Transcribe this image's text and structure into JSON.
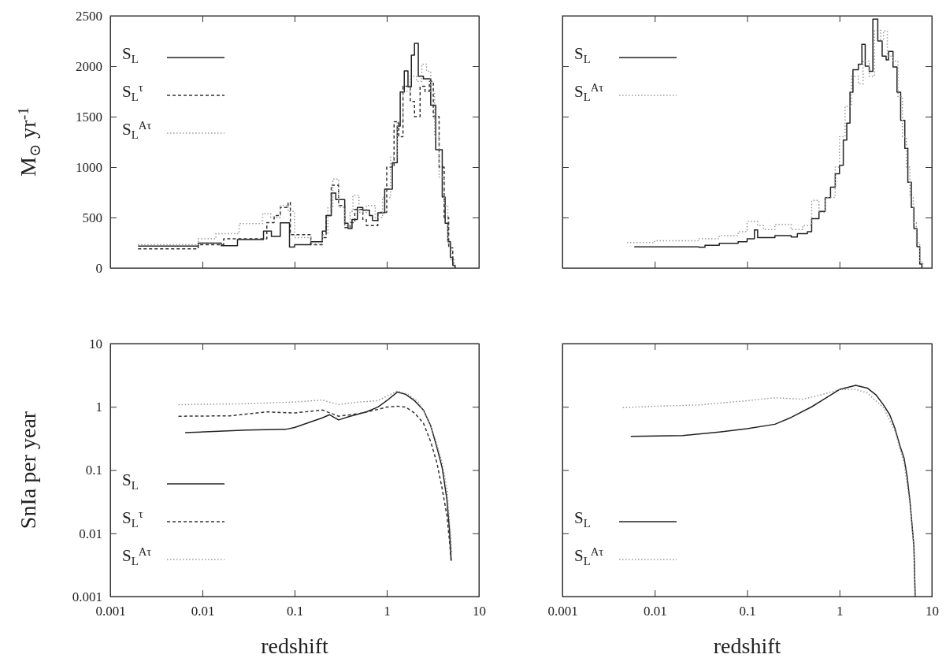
{
  "chart_data": [
    {
      "type": "step",
      "log": "x",
      "xlim": [
        0.001,
        10
      ],
      "xticks": [
        0.001,
        0.01,
        0.1,
        1,
        10
      ],
      "ylim": [
        0,
        2500
      ],
      "yticks": [
        0,
        500,
        1000,
        1500,
        2000,
        2500
      ],
      "tick_labels": "y",
      "ylabel": "M$_{⊙}$ yr$^{-1}$",
      "legend": "top left",
      "series": [
        {
          "name": "S$_{L}$",
          "color": "#222222",
          "line_style": "solid",
          "x": [
            0.002,
            0.009,
            0.016,
            0.024,
            0.046,
            0.056,
            0.07,
            0.088,
            0.1,
            0.15,
            0.2,
            0.22,
            0.25,
            0.28,
            0.35,
            0.38,
            0.42,
            0.48,
            0.55,
            0.65,
            0.7,
            0.8,
            0.95,
            1.15,
            1.3,
            1.4,
            1.55,
            1.7,
            1.85,
            2.0,
            2.2,
            2.5,
            2.8,
            3.0,
            3.4,
            4.0,
            4.3,
            4.6,
            4.9,
            5.2,
            5.5
          ],
          "values": [
            216,
            247,
            221,
            281,
            365,
            312,
            448,
            208,
            230,
            260,
            365,
            520,
            742,
            677,
            443,
            390,
            480,
            600,
            573,
            520,
            470,
            547,
            781,
            1042,
            1406,
            1745,
            1953,
            1797,
            2109,
            2226,
            1901,
            1875,
            1875,
            1614,
            1172,
            703,
            443,
            260,
            104,
            26,
            0
          ]
        },
        {
          "name": "S$_{L}$$^{τ}$",
          "color": "#333333",
          "line_style": "dashed",
          "x": [
            0.002,
            0.009,
            0.017,
            0.05,
            0.06,
            0.07,
            0.085,
            0.09,
            0.15,
            0.2,
            0.22,
            0.25,
            0.3,
            0.35,
            0.4,
            0.45,
            0.55,
            0.6,
            0.8,
            1.0,
            1.2,
            1.35,
            1.5,
            1.8,
            2.0,
            2.3,
            2.6,
            2.9,
            3.2,
            3.7,
            4.2,
            4.7,
            5.2,
            5.5
          ],
          "values": [
            190,
            230,
            290,
            450,
            520,
            600,
            650,
            330,
            230,
            300,
            520,
            820,
            620,
            400,
            450,
            580,
            480,
            420,
            550,
            1000,
            1450,
            1300,
            1800,
            1650,
            1500,
            1800,
            1750,
            1850,
            1500,
            1000,
            500,
            200,
            30,
            0
          ]
        },
        {
          "name": "S$_{L}$$^{Aτ}$",
          "color": "#999999",
          "line_style": "dotted",
          "x": [
            0.002,
            0.009,
            0.014,
            0.025,
            0.045,
            0.055,
            0.07,
            0.085,
            0.1,
            0.15,
            0.2,
            0.23,
            0.26,
            0.3,
            0.35,
            0.4,
            0.43,
            0.5,
            0.6,
            0.75,
            0.9,
            1.1,
            1.3,
            1.5,
            1.8,
            2.1,
            2.4,
            2.7,
            3.0,
            3.3,
            3.7,
            4.2,
            4.6,
            5.0,
            5.4
          ],
          "values": [
            230,
            290,
            340,
            440,
            540,
            500,
            620,
            560,
            300,
            250,
            330,
            600,
            880,
            600,
            420,
            560,
            720,
            550,
            620,
            500,
            700,
            1100,
            1450,
            1750,
            1900,
            1850,
            2020,
            1950,
            1750,
            1300,
            900,
            620,
            250,
            80,
            0
          ]
        }
      ]
    },
    {
      "type": "step",
      "log": "x",
      "xlim": [
        0.001,
        10
      ],
      "xticks": [
        0.001,
        0.01,
        0.1,
        1,
        10
      ],
      "ylim": [
        0,
        2500
      ],
      "yticks": [
        0,
        500,
        1000,
        1500,
        2000,
        2500
      ],
      "tick_labels": false,
      "legend": "top left",
      "series": [
        {
          "name": "S$_{L}$",
          "color": "#222222",
          "line_style": "solid",
          "x": [
            0.006,
            0.03,
            0.035,
            0.05,
            0.08,
            0.1,
            0.12,
            0.13,
            0.2,
            0.3,
            0.35,
            0.45,
            0.5,
            0.6,
            0.7,
            0.8,
            0.9,
            1.0,
            1.1,
            1.2,
            1.3,
            1.4,
            1.6,
            1.75,
            1.9,
            2.1,
            2.3,
            2.6,
            2.9,
            3.2,
            3.4,
            3.8,
            4.2,
            4.6,
            5.1,
            5.5,
            6.0,
            6.4,
            6.9,
            7.4,
            7.8
          ],
          "values": [
            209,
            205,
            225,
            245,
            260,
            290,
            376,
            300,
            320,
            306,
            340,
            360,
            488,
            560,
            697,
            800,
            934,
            1017,
            1268,
            1435,
            1742,
            1965,
            2020,
            2216,
            2000,
            1950,
            2466,
            2250,
            2100,
            2062,
            2146,
            1993,
            1742,
            1463,
            1185,
            850,
            599,
            390,
            210,
            40,
            0
          ]
        },
        {
          "name": "S$_{L}$$^{Aτ}$",
          "color": "#999999",
          "line_style": "dotted",
          "x": [
            0.005,
            0.01,
            0.02,
            0.03,
            0.05,
            0.08,
            0.1,
            0.13,
            0.15,
            0.2,
            0.3,
            0.4,
            0.5,
            0.6,
            0.7,
            0.9,
            1.0,
            1.15,
            1.35,
            1.6,
            1.8,
            2.1,
            2.4,
            2.8,
            3.0,
            3.3,
            3.8,
            4.3,
            4.8,
            5.3,
            5.8,
            6.3,
            6.8,
            7.4,
            8.0
          ],
          "values": [
            251,
            270,
            270,
            290,
            320,
            360,
            460,
            420,
            380,
            432,
            380,
            420,
            669,
            550,
            700,
            1000,
            1300,
            1602,
            1900,
            1825,
            2050,
            1900,
            2355,
            2250,
            2350,
            2100,
            2050,
            1700,
            1300,
            1000,
            700,
            450,
            250,
            60,
            0
          ]
        }
      ]
    },
    {
      "type": "line",
      "log": "xy",
      "xlim": [
        0.001,
        10
      ],
      "xticks": [
        0.001,
        0.01,
        0.1,
        1,
        10
      ],
      "ylim": [
        0.001,
        10
      ],
      "yticks": [
        0.001,
        0.01,
        0.1,
        1,
        10
      ],
      "xlabel": "redshift",
      "ylabel": "SnIa per year",
      "legend": "bottom left",
      "series": [
        {
          "name": "S$_{L}$",
          "color": "#222222",
          "line_style": "solid",
          "x": [
            0.0065,
            0.015,
            0.03,
            0.08,
            0.1,
            0.2,
            0.24,
            0.3,
            0.4,
            0.6,
            0.8,
            1.0,
            1.3,
            1.6,
            2.0,
            2.5,
            3.0,
            3.5,
            4.0,
            4.5,
            4.8,
            5.0
          ],
          "values": [
            0.39,
            0.41,
            0.43,
            0.44,
            0.47,
            0.67,
            0.75,
            0.62,
            0.71,
            0.83,
            0.99,
            1.25,
            1.71,
            1.58,
            1.25,
            0.89,
            0.5,
            0.23,
            0.108,
            0.034,
            0.011,
            0.0037
          ]
        },
        {
          "name": "S$_{L}$$^{τ}$",
          "color": "#333333",
          "line_style": "dashed",
          "x": [
            0.0055,
            0.02,
            0.05,
            0.1,
            0.2,
            0.3,
            0.5,
            0.8,
            1.0,
            1.3,
            1.6,
            2.0,
            2.5,
            3.0,
            3.5,
            4.0,
            4.5,
            4.8,
            5.0
          ],
          "values": [
            0.71,
            0.72,
            0.83,
            0.8,
            0.89,
            0.71,
            0.78,
            0.91,
            0.99,
            1.02,
            0.99,
            0.8,
            0.55,
            0.28,
            0.13,
            0.05,
            0.019,
            0.0074,
            0.0037
          ]
        },
        {
          "name": "S$_{L}$$^{Aτ}$",
          "color": "#999999",
          "line_style": "dotted",
          "x": [
            0.0055,
            0.03,
            0.1,
            0.2,
            0.3,
            0.5,
            0.8,
            1.3,
            1.7,
            2.2,
            2.7,
            3.3,
            4.0,
            4.5,
            4.9,
            5.1
          ],
          "values": [
            1.08,
            1.12,
            1.19,
            1.28,
            1.08,
            1.19,
            1.25,
            1.78,
            1.58,
            1.19,
            0.72,
            0.34,
            0.13,
            0.05,
            0.011,
            0.0047
          ]
        }
      ]
    },
    {
      "type": "line",
      "log": "xy",
      "xlim": [
        0.001,
        10
      ],
      "xticks": [
        0.001,
        0.01,
        0.1,
        1,
        10
      ],
      "ylim": [
        0.001,
        10
      ],
      "yticks": [
        0.001,
        0.01,
        0.1,
        1,
        10
      ],
      "tick_labels": "x",
      "xlabel": "redshift",
      "legend": "bottom left",
      "series": [
        {
          "name": "S$_{L}$",
          "color": "#222222",
          "line_style": "solid",
          "x": [
            0.0055,
            0.02,
            0.05,
            0.1,
            0.2,
            0.3,
            0.5,
            0.8,
            1.0,
            1.5,
            2.0,
            2.5,
            3.0,
            3.5,
            4.0,
            4.5,
            5.0,
            5.4,
            5.8,
            6.4,
            6.6
          ],
          "values": [
            0.34,
            0.35,
            0.4,
            0.45,
            0.53,
            0.68,
            1.0,
            1.53,
            1.88,
            2.19,
            1.98,
            1.53,
            1.07,
            0.75,
            0.45,
            0.245,
            0.155,
            0.08,
            0.032,
            0.0062,
            0.001
          ]
        },
        {
          "name": "S$_{L}$$^{Aτ}$",
          "color": "#999999",
          "line_style": "dotted",
          "x": [
            0.0045,
            0.01,
            0.03,
            0.1,
            0.2,
            0.4,
            0.7,
            1.0,
            1.5,
            2.0,
            3.0,
            4.0,
            5.0,
            5.8,
            6.4,
            6.6
          ],
          "values": [
            0.97,
            1.02,
            1.07,
            1.25,
            1.39,
            1.32,
            1.61,
            1.88,
            1.88,
            1.66,
            0.97,
            0.41,
            0.13,
            0.029,
            0.0057,
            0.001
          ]
        }
      ]
    }
  ]
}
